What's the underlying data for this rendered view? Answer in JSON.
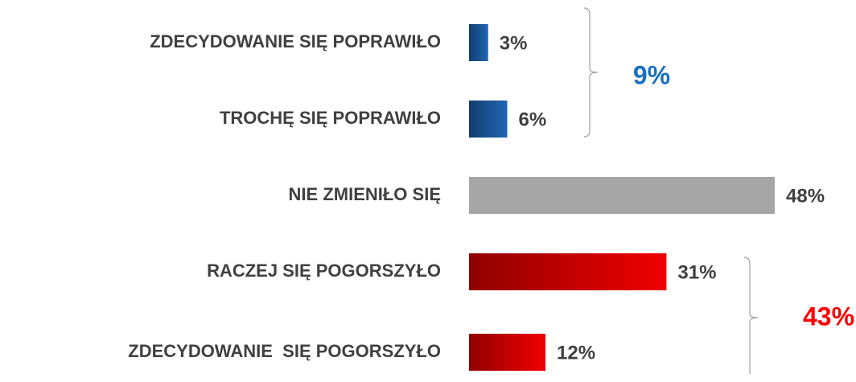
{
  "chart_data": {
    "type": "bar",
    "orientation": "horizontal",
    "categories": [
      "ZDECYDOWANIE SIĘ POPRAWIŁO",
      "TROCHĘ SIĘ POPRAWIŁO",
      "NIE ZMIENIŁO SIĘ",
      "RACZEJ SIĘ POGORSZYŁO",
      "ZDECYDOWANIE  SIĘ POGORSZYŁO"
    ],
    "values": [
      3,
      6,
      48,
      31,
      12
    ],
    "value_labels": [
      "3%",
      "6%",
      "48%",
      "31%",
      "12%"
    ],
    "colors": [
      "#1f66b5",
      "#1f66b5",
      "#a6a6a6",
      "#f00000",
      "#f00000"
    ],
    "annotations": [
      {
        "text": "9%",
        "color": "#1a70c0"
      },
      {
        "text": "43%",
        "color": "#ff0000"
      }
    ]
  }
}
